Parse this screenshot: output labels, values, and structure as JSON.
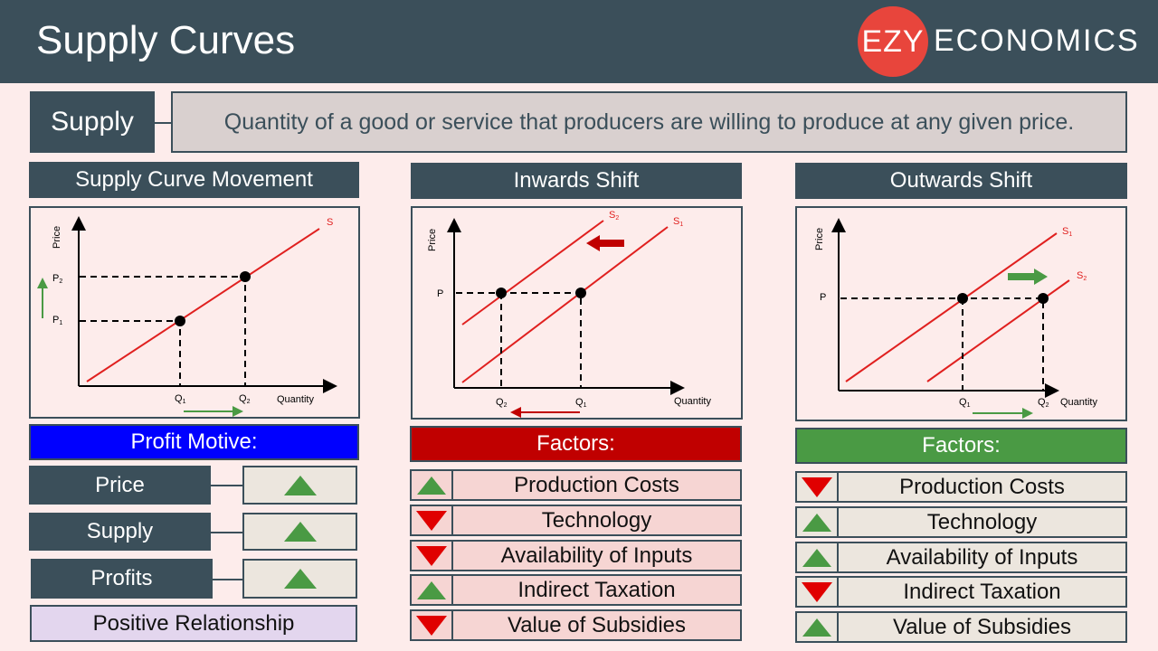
{
  "header": {
    "title": "Supply Curves",
    "logo_circle": "EZY",
    "logo_text": "ECONOMICS"
  },
  "definition": {
    "term": "Supply",
    "text": "Quantity of a good or service that producers are willing to produce at any given price."
  },
  "panels": [
    {
      "title": "Supply Curve Movement",
      "diagram": {
        "y_label": "Price",
        "x_label": "Quantity",
        "curve": "S",
        "price_labels": [
          "P",
          "1",
          "P",
          "2"
        ],
        "q_labels": [
          "Q",
          "1",
          "Q",
          "2"
        ]
      }
    },
    {
      "title": "Inwards Shift",
      "diagram": {
        "y_label": "Price",
        "x_label": "Quantity",
        "curves": [
          "S",
          "2",
          "S",
          "1"
        ],
        "price_label": "P",
        "q_labels": [
          "Q",
          "2",
          "Q",
          "1"
        ]
      }
    },
    {
      "title": "Outwards Shift",
      "diagram": {
        "y_label": "Price",
        "x_label": "Quantity",
        "curves": [
          "S",
          "1",
          "S",
          "2"
        ],
        "price_label": "P",
        "q_labels": [
          "Q",
          "1",
          "Q",
          "2"
        ]
      }
    }
  ],
  "profit_motive": {
    "title": "Profit Motive:",
    "rows": [
      {
        "label": "Price",
        "dir": "up"
      },
      {
        "label": "Supply",
        "dir": "up"
      },
      {
        "label": "Profits",
        "dir": "up"
      }
    ],
    "footer": "Positive Relationship"
  },
  "inwards_factors": {
    "title": "Factors:",
    "rows": [
      {
        "label": "Production Costs",
        "dir": "up"
      },
      {
        "label": "Technology",
        "dir": "down"
      },
      {
        "label": "Availability of Inputs",
        "dir": "down"
      },
      {
        "label": "Indirect Taxation",
        "dir": "up"
      },
      {
        "label": "Value of Subsidies",
        "dir": "down"
      }
    ]
  },
  "outwards_factors": {
    "title": "Factors:",
    "rows": [
      {
        "label": "Production Costs",
        "dir": "down"
      },
      {
        "label": "Technology",
        "dir": "up"
      },
      {
        "label": "Availability of Inputs",
        "dir": "up"
      },
      {
        "label": "Indirect Taxation",
        "dir": "down"
      },
      {
        "label": "Value of Subsidies",
        "dir": "up"
      }
    ]
  },
  "colors": {
    "header": "#3b4f5a",
    "logo": "#e8453c",
    "profit_motive": "#0000ff",
    "inwards": "#c00000",
    "outwards": "#4a9a44",
    "curve": "#e0201f",
    "up": "#4a9a44",
    "down": "#e00000"
  }
}
